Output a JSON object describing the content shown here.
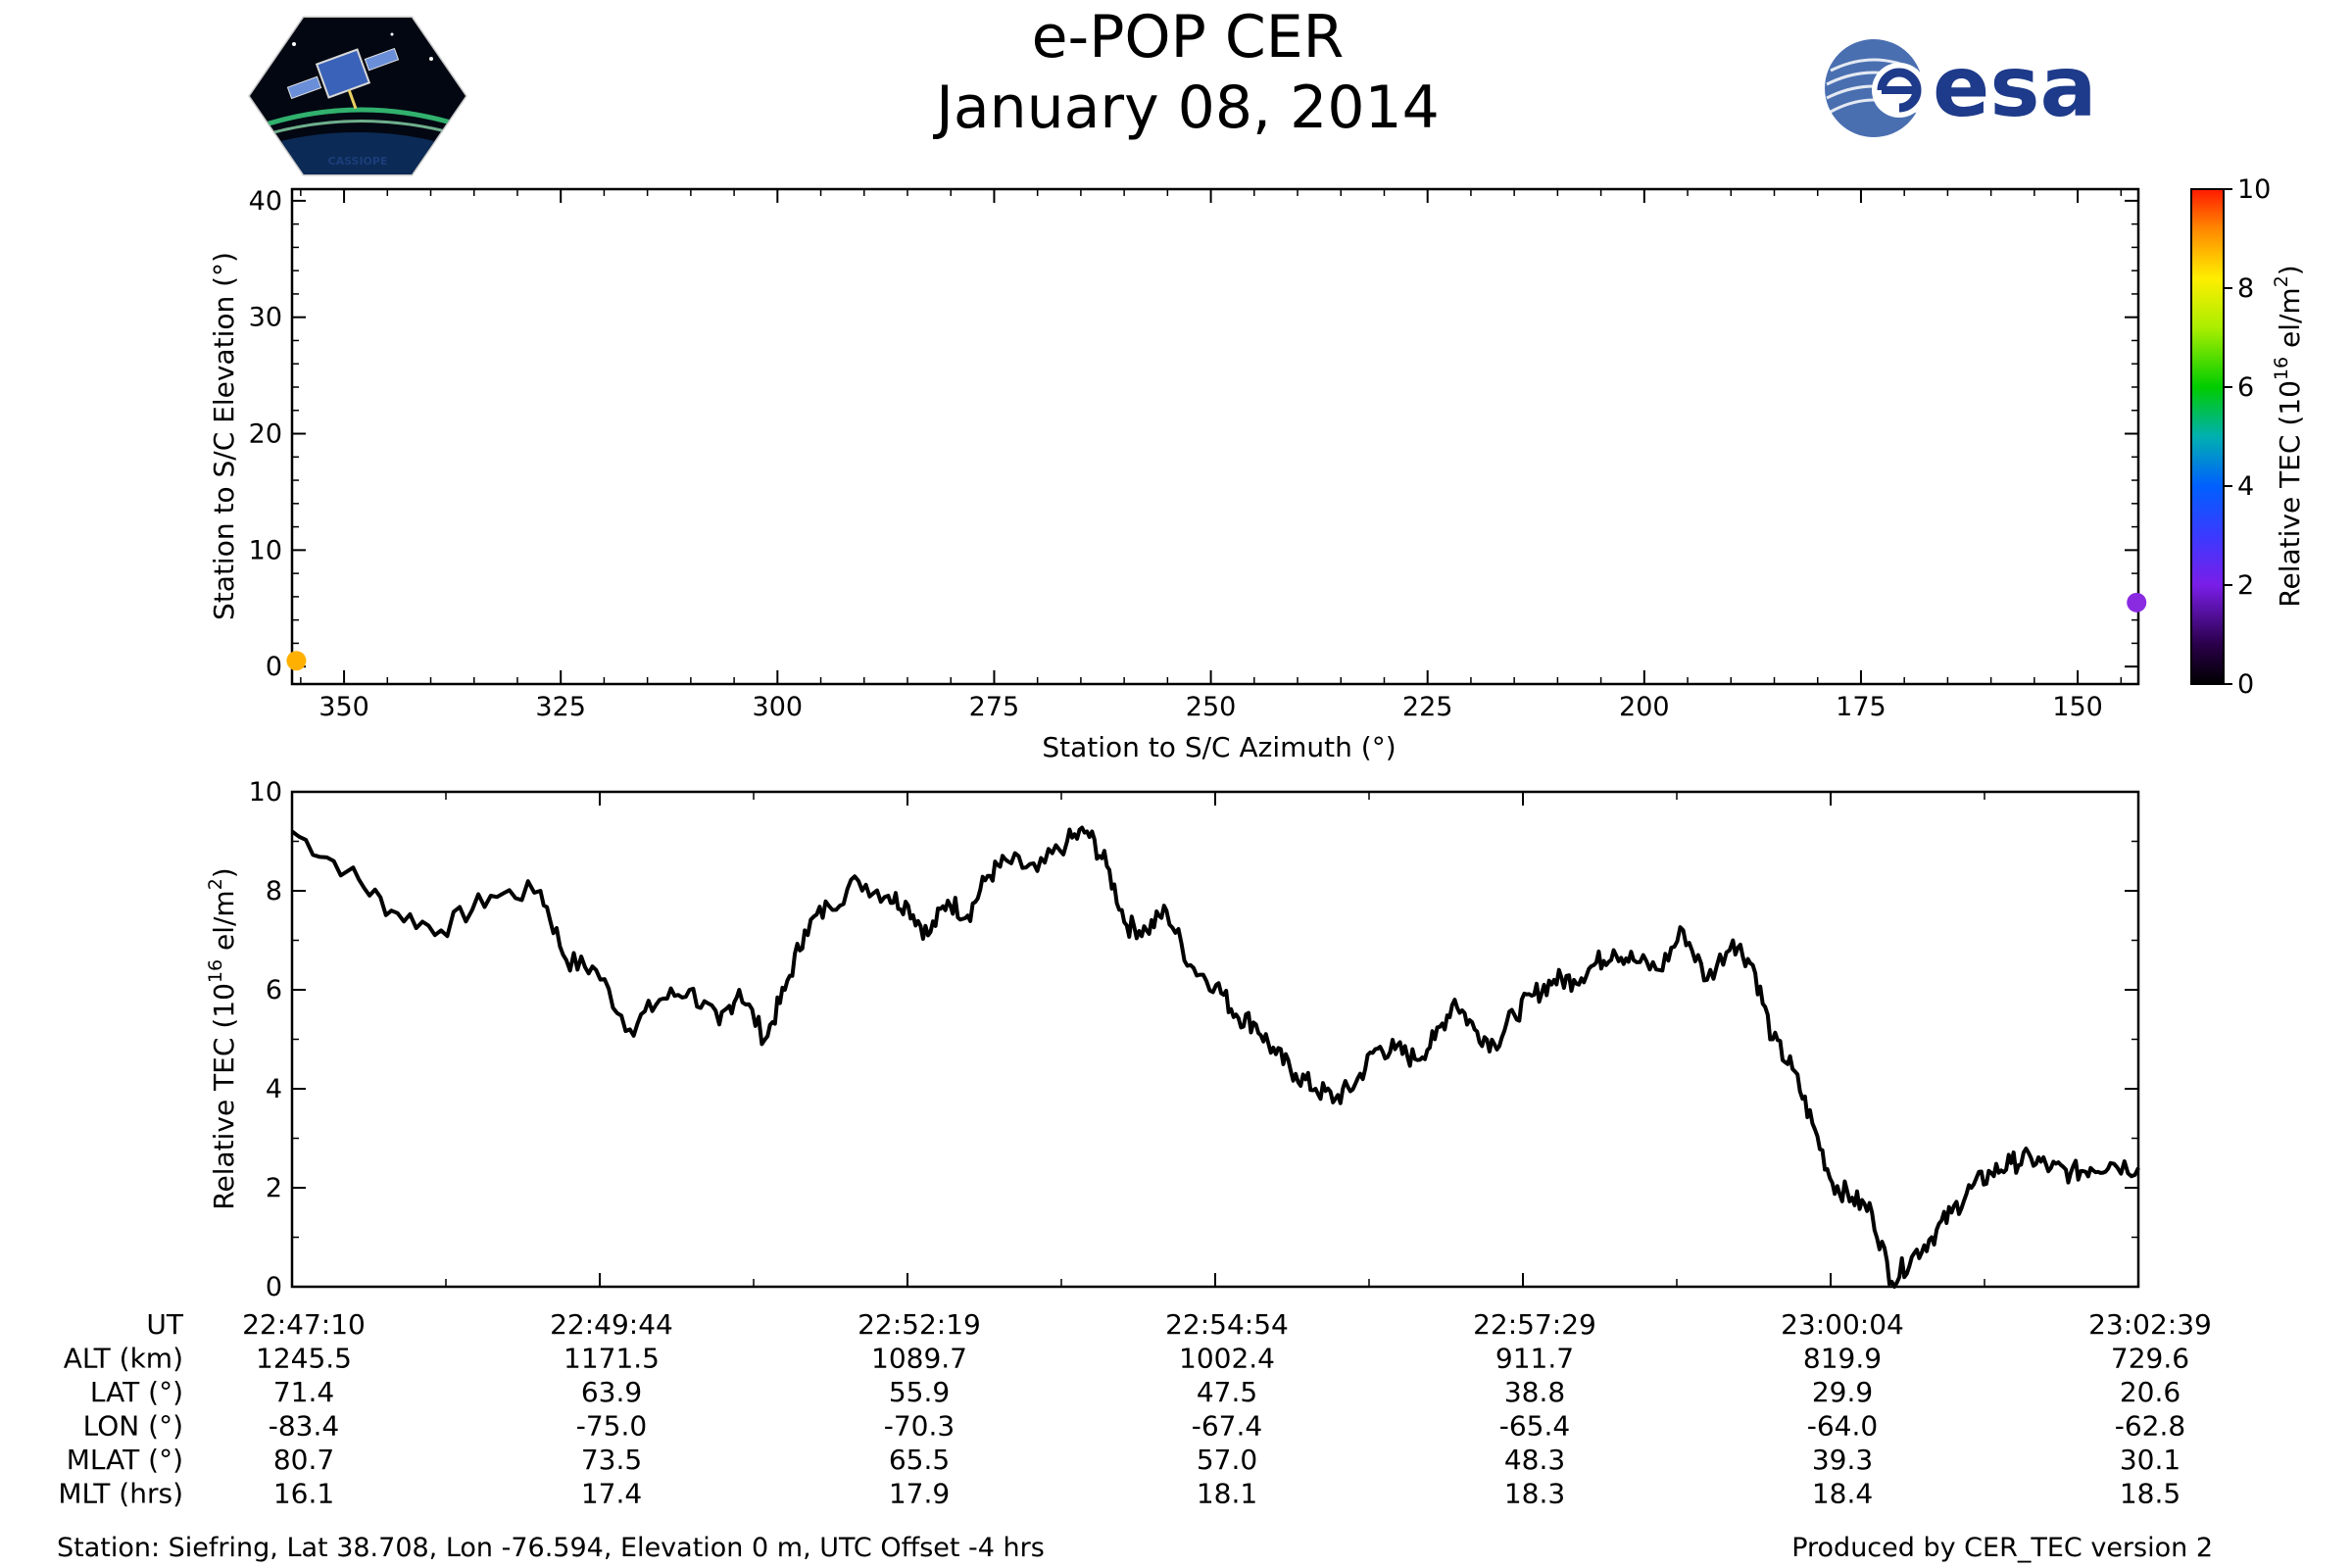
{
  "title": {
    "line1": "e-POP CER",
    "line2": "January 08, 2014"
  },
  "logos": {
    "left": "CASSIOPE",
    "right": "esa"
  },
  "colors": {
    "trace": "#000000",
    "esa_blue": "#1e3a8a",
    "marker_start": "#ffb000",
    "marker_end": "#8a2be2"
  },
  "chart_data": [
    {
      "type": "scatter",
      "xlabel": "Station to S/C Azimuth (°)",
      "ylabel": "Station to S/C Elevation (°)",
      "xlim": [
        356,
        143
      ],
      "ylim": [
        -1.5,
        41
      ],
      "xticks": [
        350,
        325,
        300,
        275,
        250,
        225,
        200,
        175,
        150
      ],
      "yticks": [
        0,
        10,
        20,
        30,
        40
      ],
      "points": [
        {
          "x": 355.5,
          "y": 0.5,
          "tec": 9.0,
          "color": "#ffb000"
        },
        {
          "x": 143.2,
          "y": 5.5,
          "tec": 2.4,
          "color": "#8a2be2"
        }
      ],
      "colorbar": {
        "label": "Relative TEC (10^16 el/m^2)",
        "range": [
          0,
          10
        ],
        "ticks": [
          0,
          2,
          4,
          6,
          8,
          10
        ],
        "colormap": "gnuplot2_like"
      }
    },
    {
      "type": "line",
      "xlabel": "",
      "ylabel": "Relative TEC (10^16 el/m^2)",
      "ylim": [
        0,
        10
      ],
      "yticks": [
        0,
        2,
        4,
        6,
        8,
        10
      ],
      "x_unit": "seconds after 22:47:10 UT",
      "x_start_label": "22:47:10",
      "x_end_label": "23:02:39",
      "series": [
        {
          "name": "",
          "x": [
            0,
            28,
            50,
            75,
            100,
            125,
            138,
            153,
            170,
            185,
            200,
            215,
            225,
            238,
            248,
            258,
            270,
            285,
            300,
            310,
            320,
            330,
            340,
            350,
            360,
            375,
            390,
            400,
            410,
            420,
            430,
            440,
            452,
            465,
            475,
            485,
            495,
            505,
            515,
            525,
            535,
            545,
            555,
            565,
            575,
            585,
            595,
            605,
            615,
            625,
            635,
            645,
            655,
            665,
            675,
            688,
            700,
            712,
            725,
            735,
            745,
            755,
            765,
            775,
            785,
            795,
            805,
            815,
            825,
            835,
            845,
            855,
            865,
            875,
            885,
            895,
            905,
            915,
            929
          ],
          "y": [
            9.2,
            8.4,
            7.6,
            7.2,
            7.9,
            8.0,
            6.6,
            6.4,
            5.2,
            5.8,
            6.0,
            5.3,
            6.0,
            5.0,
            6.0,
            7.2,
            7.7,
            8.2,
            7.9,
            7.7,
            7.1,
            7.8,
            7.5,
            8.3,
            8.6,
            8.4,
            9.0,
            9.2,
            8.5,
            7.3,
            7.2,
            7.6,
            6.5,
            6.1,
            5.5,
            5.3,
            4.7,
            4.3,
            4.0,
            3.8,
            4.1,
            4.8,
            4.8,
            4.6,
            5.0,
            5.8,
            5.2,
            4.9,
            5.5,
            5.9,
            6.2,
            6.2,
            6.5,
            6.8,
            6.6,
            6.4,
            7.2,
            6.2,
            7.0,
            6.5,
            5.0,
            4.4,
            3.3,
            2.1,
            1.8,
            1.5,
            0.1,
            0.6,
            1.0,
            1.5,
            2.0,
            2.3,
            2.5,
            2.6,
            2.4,
            2.3,
            2.4,
            2.5,
            2.4
          ]
        }
      ]
    }
  ],
  "table": {
    "columns": [
      "22:47:10",
      "22:49:44",
      "22:52:19",
      "22:54:54",
      "22:57:29",
      "23:00:04",
      "23:02:39"
    ],
    "rows": [
      {
        "label": "UT",
        "values": [
          "22:47:10",
          "22:49:44",
          "22:52:19",
          "22:54:54",
          "22:57:29",
          "23:00:04",
          "23:02:39"
        ]
      },
      {
        "label": "ALT (km)",
        "values": [
          "1245.5",
          "1171.5",
          "1089.7",
          "1002.4",
          "911.7",
          "819.9",
          "729.6"
        ]
      },
      {
        "label": "LAT (°)",
        "values": [
          "71.4",
          "63.9",
          "55.9",
          "47.5",
          "38.8",
          "29.9",
          "20.6"
        ]
      },
      {
        "label": "LON (°)",
        "values": [
          "-83.4",
          "-75.0",
          "-70.3",
          "-67.4",
          "-65.4",
          "-64.0",
          "-62.8"
        ]
      },
      {
        "label": "MLAT (°)",
        "values": [
          "80.7",
          "73.5",
          "65.5",
          "57.0",
          "48.3",
          "39.3",
          "30.1"
        ]
      },
      {
        "label": "MLT (hrs)",
        "values": [
          "16.1",
          "17.4",
          "17.9",
          "18.1",
          "18.3",
          "18.4",
          "18.5"
        ]
      }
    ]
  },
  "footer": {
    "station": "Station: Siefring, Lat 38.708, Lon -76.594, Elevation 0 m, UTC Offset -4 hrs",
    "producer": "Produced by CER_TEC version 2"
  }
}
